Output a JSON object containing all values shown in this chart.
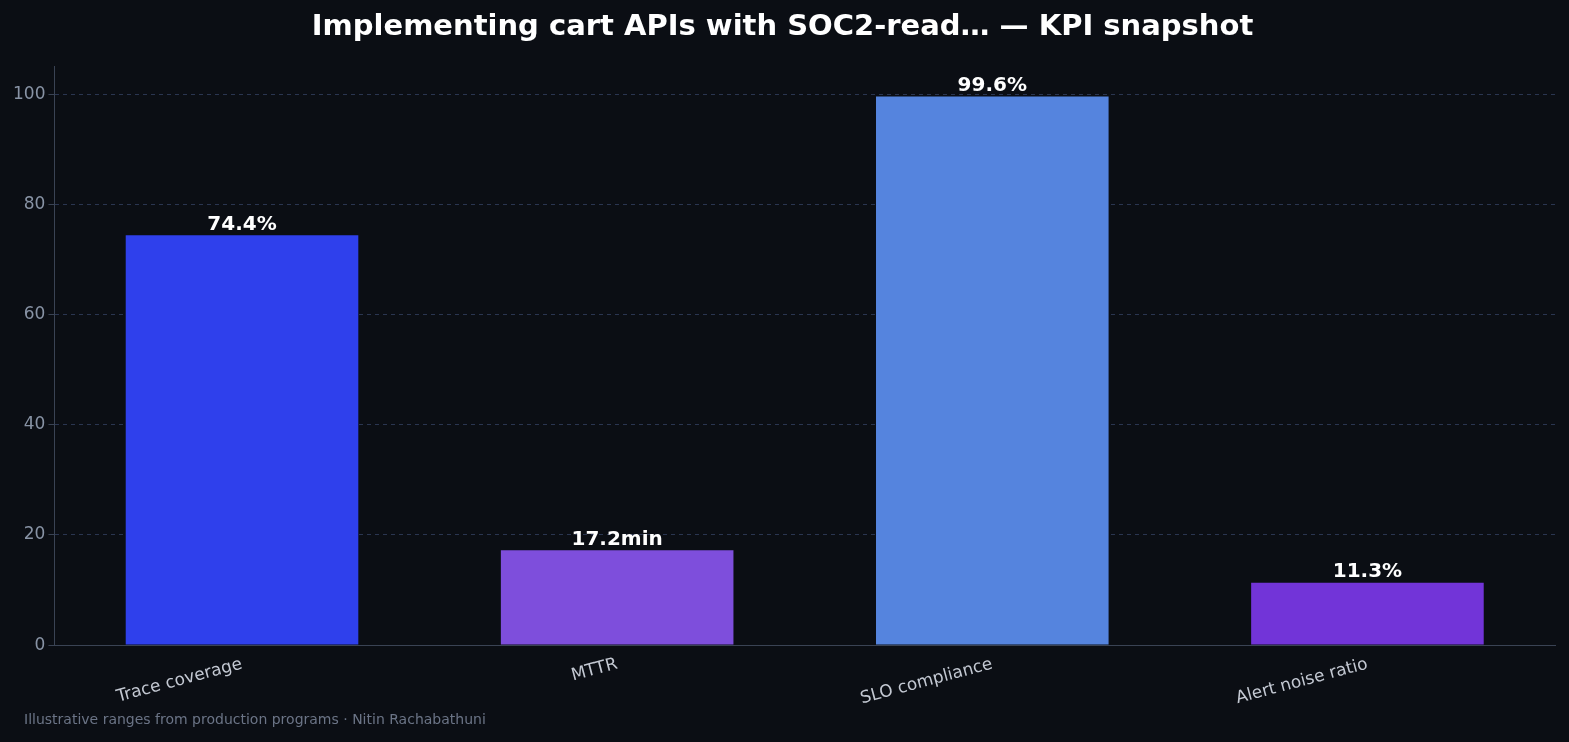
{
  "chart_data": {
    "type": "bar",
    "title": "Implementing cart APIs with SOC2-read… — KPI snapshot",
    "categories": [
      "Trace coverage",
      "MTTR",
      "SLO compliance",
      "Alert noise ratio"
    ],
    "values": [
      74.4,
      17.2,
      99.6,
      11.3
    ],
    "colors": [
      "#2f40ec",
      "#7e4edc",
      "#5584de",
      "#7234d8"
    ],
    "value_labels": [
      "74.4%",
      "17.2min",
      "99.6%",
      "11.3%"
    ],
    "ylim": [
      0,
      105
    ],
    "yticks": [
      0,
      20,
      40,
      60,
      80,
      100
    ],
    "grid": "y",
    "legend": false,
    "annotations": [
      "Illustrative ranges from production programs · Nitin Rachabathuni"
    ]
  }
}
